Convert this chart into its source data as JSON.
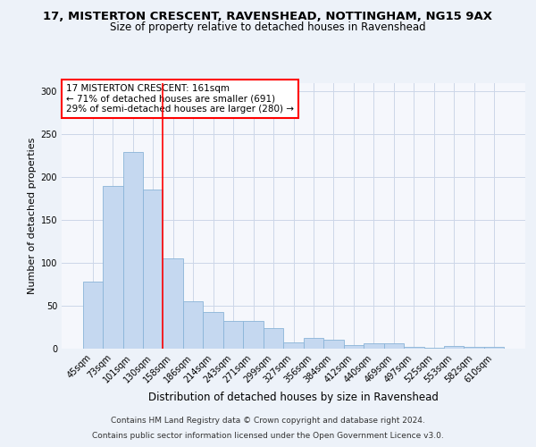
{
  "title": "17, MISTERTON CRESCENT, RAVENSHEAD, NOTTINGHAM, NG15 9AX",
  "subtitle": "Size of property relative to detached houses in Ravenshead",
  "xlabel": "Distribution of detached houses by size in Ravenshead",
  "ylabel": "Number of detached properties",
  "categories": [
    "45sqm",
    "73sqm",
    "101sqm",
    "130sqm",
    "158sqm",
    "186sqm",
    "214sqm",
    "243sqm",
    "271sqm",
    "299sqm",
    "327sqm",
    "356sqm",
    "384sqm",
    "412sqm",
    "440sqm",
    "469sqm",
    "497sqm",
    "525sqm",
    "553sqm",
    "582sqm",
    "610sqm"
  ],
  "values": [
    78,
    190,
    229,
    185,
    105,
    55,
    43,
    32,
    32,
    24,
    7,
    12,
    10,
    4,
    6,
    6,
    2,
    1,
    3,
    2,
    2
  ],
  "bar_color": "#c5d8f0",
  "bar_edge_color": "#8ab4d8",
  "vline_color": "red",
  "vline_x_index": 3.5,
  "annotation_text_line1": "17 MISTERTON CRESCENT: 161sqm",
  "annotation_text_line2": "← 71% of detached houses are smaller (691)",
  "annotation_text_line3": "29% of semi-detached houses are larger (280) →",
  "annotation_box_color": "white",
  "annotation_box_edge": "red",
  "ylim": [
    0,
    310
  ],
  "yticks": [
    0,
    50,
    100,
    150,
    200,
    250,
    300
  ],
  "footer1": "Contains HM Land Registry data © Crown copyright and database right 2024.",
  "footer2": "Contains public sector information licensed under the Open Government Licence v3.0.",
  "bg_color": "#edf2f9",
  "plot_bg_color": "#f5f7fc",
  "grid_color": "#ccd6e8",
  "title_fontsize": 9.5,
  "subtitle_fontsize": 8.5,
  "ylabel_fontsize": 8,
  "xlabel_fontsize": 8.5,
  "tick_fontsize": 7,
  "footer_fontsize": 6.5,
  "annotation_fontsize": 7.5
}
